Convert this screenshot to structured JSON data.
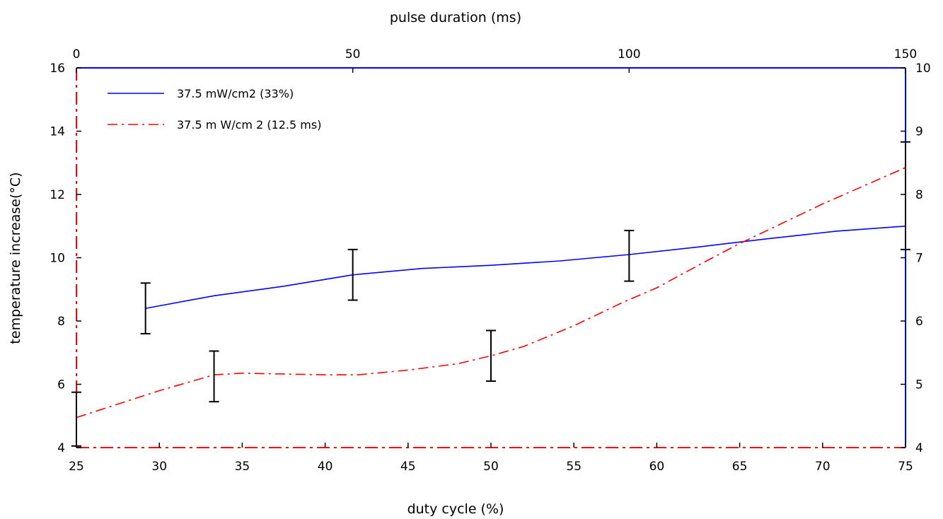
{
  "chart_data": {
    "type": "line",
    "title": "",
    "xlabel": "duty cycle (%)",
    "ylabel": "temperature increase(°C)",
    "x2label": "pulse duration (ms)",
    "xlim": [
      25,
      75
    ],
    "ylim": [
      4,
      16
    ],
    "x2lim": [
      0,
      150
    ],
    "y2lim": [
      4,
      10
    ],
    "xticks": [
      "25",
      "30",
      "35",
      "40",
      "45",
      "50",
      "55",
      "60",
      "65",
      "70",
      "75"
    ],
    "yticks": [
      "4",
      "6",
      "8",
      "10",
      "12",
      "14",
      "16"
    ],
    "x2ticks": [
      "0",
      "50",
      "100",
      "150"
    ],
    "y2ticks": [
      "4",
      "5",
      "6",
      "7",
      "8",
      "9",
      "10"
    ],
    "legend_position": "top-left",
    "grid": false,
    "series": [
      {
        "name": "37.5 mW/cm2 (33%)",
        "axis": "top-right",
        "color": "#0000ff",
        "style": "solid",
        "points": [
          [
            12.5,
            6.2
          ],
          [
            25,
            6.4
          ],
          [
            37.5,
            6.55
          ],
          [
            50,
            6.73
          ],
          [
            62.5,
            6.83
          ],
          [
            75,
            6.88
          ],
          [
            87.5,
            6.95
          ],
          [
            100,
            7.05
          ],
          [
            112.5,
            7.17
          ],
          [
            125,
            7.3
          ],
          [
            137.5,
            7.42
          ],
          [
            150,
            7.5
          ]
        ],
        "error_bars": [
          {
            "x": 12.5,
            "low": 5.8,
            "high": 6.6
          },
          {
            "x": 50,
            "low": 6.33,
            "high": 7.13
          },
          {
            "x": 100,
            "low": 6.63,
            "high": 7.43
          },
          {
            "x": 150,
            "low": 7.13,
            "high": 8.83
          }
        ]
      },
      {
        "name": "37.5 mW/cm2 (12.5 ms)",
        "display_name": "37.5 m W/cm 2 (12.5 ms)",
        "axis": "bottom-left",
        "color": "#ff0000",
        "style": "dash-dot",
        "points": [
          [
            25,
            4.95
          ],
          [
            30,
            5.8
          ],
          [
            33.3,
            6.3
          ],
          [
            35,
            6.35
          ],
          [
            40,
            6.3
          ],
          [
            42,
            6.3
          ],
          [
            45,
            6.45
          ],
          [
            48,
            6.65
          ],
          [
            50,
            6.9
          ],
          [
            52,
            7.2
          ],
          [
            55,
            7.85
          ],
          [
            58,
            8.6
          ],
          [
            60,
            9.05
          ],
          [
            63,
            9.9
          ],
          [
            65,
            10.45
          ],
          [
            70,
            11.7
          ],
          [
            75,
            12.85
          ]
        ],
        "error_bars": [
          {
            "x": 25,
            "low": 4.05,
            "high": 5.75
          },
          {
            "x": 33.3,
            "low": 5.45,
            "high": 7.05
          },
          {
            "x": 50,
            "low": 6.1,
            "high": 7.7
          }
        ]
      }
    ]
  }
}
